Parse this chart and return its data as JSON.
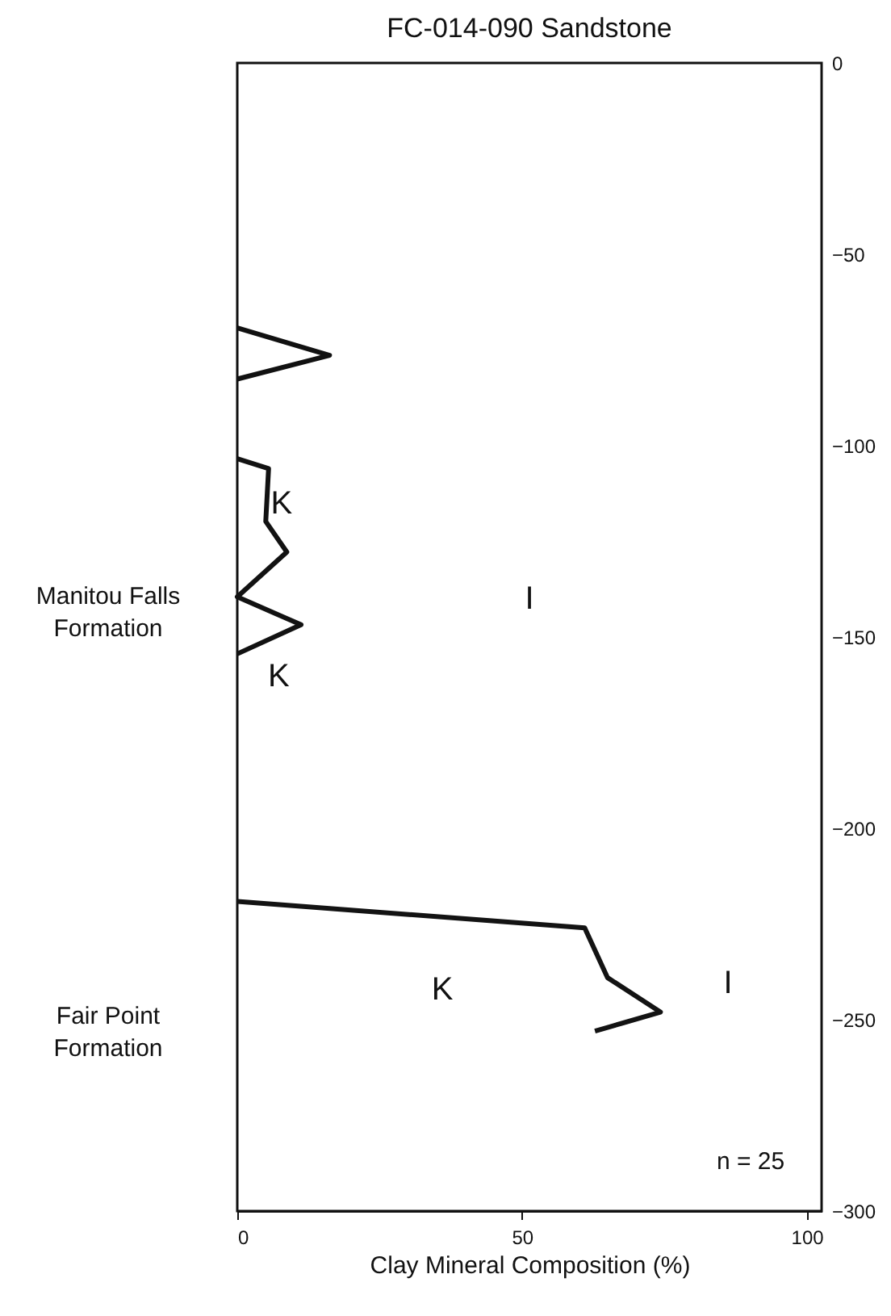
{
  "chart_data": {
    "type": "line",
    "title": "FC-014-090 Sandstone",
    "xlabel": "Clay Mineral Composition (%)",
    "xlim": [
      0,
      102.6
    ],
    "xticks": [
      0,
      50,
      100
    ],
    "ylim": [
      -300,
      0
    ],
    "yticks": [
      0,
      -50,
      -100,
      -150,
      -200,
      -250,
      -300
    ],
    "grid": false,
    "series": [
      {
        "color": "#111111",
        "x": [
          0,
          16.2,
          0
        ],
        "values": [
          -69.2,
          -76.4,
          -82.6
        ]
      },
      {
        "color": "#121212",
        "x": [
          0,
          5.5,
          5,
          8.7,
          0,
          11.2,
          0
        ],
        "values": [
          -103.4,
          -106,
          -119.8,
          -127.8,
          -139.5,
          -146.8,
          -154.4
        ]
      },
      {
        "color": "#131313",
        "x": [
          0,
          61,
          65,
          74.3,
          62.8
        ],
        "values": [
          -219.1,
          -226,
          -239,
          -248,
          -253
        ]
      }
    ],
    "annotations": [
      {
        "text": "K",
        "x": 5.5,
        "y": -106
      },
      {
        "text": "K",
        "x": 5,
        "y": -151
      },
      "I",
      "K",
      "I",
      "n = 25",
      "Manitou Falls\nFormation",
      "Fair Point\nFormation"
    ]
  }
}
